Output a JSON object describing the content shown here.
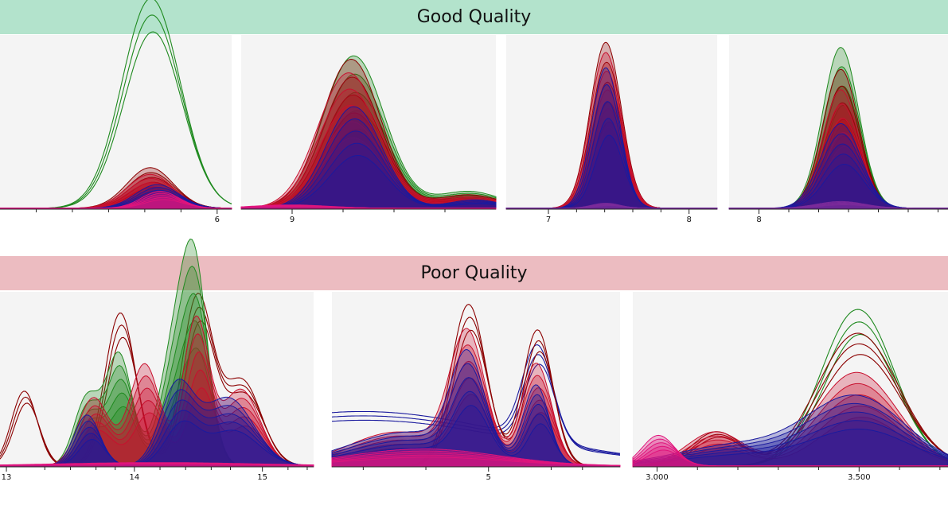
{
  "sections": [
    {
      "title": "Good Quality",
      "color": "#b3e3cc"
    },
    {
      "title": "Poor Quality",
      "color": "#ecbcc1"
    }
  ],
  "palette": {
    "green": "#1f8a1f",
    "red": "#c8102e",
    "dark_red": "#8b0000",
    "blue": "#1a1a9e",
    "magenta": "#e0147c",
    "purple": "#7a2a9a",
    "plot_background": "#f4f4f4"
  },
  "chart_data": [
    {
      "type": "line",
      "section": "Good Quality",
      "xlim": [
        4.5,
        6.1
      ],
      "ylim": [
        0,
        1
      ],
      "tick_values": [
        6
      ],
      "tick_labels": [
        "6"
      ],
      "minor_ticks": [
        4.75,
        5.0,
        5.25,
        5.5,
        5.75
      ],
      "series": [
        {
          "color": "green",
          "fill": false,
          "peaks": [
            [
              5.55,
              0.2,
              0.89
            ],
            [
              5.55,
              0.2,
              0.35
            ]
          ]
        },
        {
          "color": "dark_red",
          "fill": true,
          "peaks": [
            [
              5.55,
              0.16,
              0.24
            ]
          ]
        },
        {
          "color": "red",
          "fill": true,
          "peaks": [
            [
              5.55,
              0.16,
              0.2
            ]
          ]
        },
        {
          "color": "blue",
          "fill": true,
          "peaks": [
            [
              5.6,
              0.15,
              0.14
            ]
          ]
        },
        {
          "color": "magenta",
          "fill": true,
          "peaks": [
            [
              5.62,
              0.13,
              0.1
            ]
          ]
        }
      ]
    },
    {
      "type": "line",
      "section": "Good Quality",
      "xlim": [
        8.6,
        10.6
      ],
      "ylim": [
        0,
        1
      ],
      "tick_values": [
        9
      ],
      "tick_labels": [
        "9"
      ],
      "minor_ticks": [
        9.4,
        9.8,
        10.2
      ],
      "series": [
        {
          "color": "green",
          "fill": true,
          "peaks": [
            [
              9.5,
              0.24,
              0.9
            ],
            [
              10.4,
              0.25,
              0.1
            ]
          ]
        },
        {
          "color": "dark_red",
          "fill": true,
          "peaks": [
            [
              9.48,
              0.23,
              0.88
            ],
            [
              10.4,
              0.25,
              0.08
            ]
          ]
        },
        {
          "color": "red",
          "fill": true,
          "peaks": [
            [
              9.46,
              0.24,
              0.8
            ],
            [
              10.4,
              0.25,
              0.07
            ]
          ]
        },
        {
          "color": "blue",
          "fill": true,
          "peaks": [
            [
              9.5,
              0.22,
              0.6
            ],
            [
              10.45,
              0.2,
              0.05
            ]
          ]
        },
        {
          "color": "magenta",
          "fill": true,
          "peaks": [
            [
              9.0,
              0.3,
              0.02
            ]
          ]
        }
      ]
    },
    {
      "type": "line",
      "section": "Good Quality",
      "xlim": [
        6.7,
        8.2
      ],
      "ylim": [
        0,
        1
      ],
      "tick_values": [
        7,
        8
      ],
      "tick_labels": [
        "7",
        "8"
      ],
      "minor_ticks": [
        7.2,
        7.4,
        7.6,
        7.8
      ],
      "series": [
        {
          "color": "dark_red",
          "fill": true,
          "peaks": [
            [
              7.42,
              0.11,
              0.98
            ]
          ]
        },
        {
          "color": "red",
          "fill": true,
          "peaks": [
            [
              7.42,
              0.11,
              0.92
            ]
          ]
        },
        {
          "color": "blue",
          "fill": true,
          "peaks": [
            [
              7.42,
              0.1,
              0.83
            ]
          ]
        },
        {
          "color": "purple",
          "fill": true,
          "peaks": [
            [
              7.42,
              0.1,
              0.03
            ]
          ]
        }
      ]
    },
    {
      "type": "line",
      "section": "Good Quality",
      "xlim": [
        7.85,
        8.95
      ],
      "ylim": [
        0,
        1
      ],
      "tick_values": [
        8
      ],
      "tick_labels": [
        "8"
      ],
      "minor_ticks": [
        8.15,
        8.3,
        8.45,
        8.6,
        8.75,
        8.9
      ],
      "series": [
        {
          "color": "green",
          "fill": true,
          "peaks": [
            [
              8.42,
              0.09,
              0.95
            ]
          ]
        },
        {
          "color": "dark_red",
          "fill": true,
          "peaks": [
            [
              8.42,
              0.09,
              0.82
            ]
          ]
        },
        {
          "color": "red",
          "fill": true,
          "peaks": [
            [
              8.42,
              0.09,
              0.7
            ]
          ]
        },
        {
          "color": "blue",
          "fill": true,
          "peaks": [
            [
              8.42,
              0.1,
              0.5
            ]
          ]
        },
        {
          "color": "purple",
          "fill": true,
          "peaks": [
            [
              8.42,
              0.12,
              0.04
            ]
          ]
        }
      ]
    },
    {
      "type": "line",
      "section": "Poor Quality",
      "xlim": [
        12.95,
        15.4
      ],
      "ylim": [
        0,
        1
      ],
      "tick_values": [
        13,
        14,
        15
      ],
      "tick_labels": [
        "13",
        "14",
        "15"
      ],
      "minor_ticks": [
        13.3,
        13.5,
        13.7,
        13.85,
        14.2,
        14.4,
        14.6,
        14.75,
        15.2,
        15.35
      ],
      "series": [
        {
          "color": "dark_red",
          "fill": false,
          "peaks": [
            [
              13.15,
              0.1,
              0.44
            ],
            [
              13.9,
              0.12,
              0.9
            ],
            [
              14.5,
              0.12,
              0.98
            ],
            [
              14.85,
              0.15,
              0.5
            ]
          ]
        },
        {
          "color": "green",
          "fill": true,
          "peaks": [
            [
              13.9,
              0.1,
              0.65
            ],
            [
              14.35,
              0.13,
              0.72
            ],
            [
              14.5,
              0.1,
              0.9
            ],
            [
              13.65,
              0.1,
              0.4
            ]
          ]
        },
        {
          "color": "red",
          "fill": true,
          "peaks": [
            [
              14.1,
              0.12,
              0.6
            ],
            [
              14.5,
              0.1,
              0.85
            ],
            [
              14.85,
              0.15,
              0.45
            ],
            [
              13.7,
              0.12,
              0.4
            ]
          ]
        },
        {
          "color": "blue",
          "fill": true,
          "peaks": [
            [
              13.65,
              0.1,
              0.3
            ],
            [
              14.35,
              0.13,
              0.45
            ],
            [
              14.75,
              0.2,
              0.4
            ]
          ]
        },
        {
          "color": "magenta",
          "fill": true,
          "peaks": [
            [
              14.2,
              0.8,
              0.02
            ]
          ]
        }
      ]
    },
    {
      "type": "line",
      "section": "Poor Quality",
      "xlim": [
        3.75,
        6.05
      ],
      "ylim": [
        0,
        1
      ],
      "tick_values": [
        5
      ],
      "tick_labels": [
        "5"
      ],
      "minor_ticks": [
        4.0,
        4.5,
        5.5,
        5.75
      ],
      "series": [
        {
          "color": "blue",
          "fill": false,
          "peaks": [
            [
              4.0,
              1.2,
              0.32
            ],
            [
              5.4,
              0.12,
              0.55
            ]
          ]
        },
        {
          "color": "dark_red",
          "fill": false,
          "peaks": [
            [
              4.85,
              0.14,
              0.95
            ],
            [
              5.4,
              0.12,
              0.8
            ]
          ]
        },
        {
          "color": "red",
          "fill": true,
          "peaks": [
            [
              4.85,
              0.14,
              0.73
            ],
            [
              5.4,
              0.12,
              0.6
            ],
            [
              4.3,
              0.4,
              0.2
            ]
          ]
        },
        {
          "color": "blue",
          "fill": true,
          "peaks": [
            [
              4.85,
              0.13,
              0.55
            ],
            [
              5.4,
              0.1,
              0.45
            ],
            [
              4.4,
              0.5,
              0.2
            ]
          ]
        },
        {
          "color": "magenta",
          "fill": true,
          "peaks": [
            [
              4.5,
              0.6,
              0.1
            ]
          ]
        }
      ]
    },
    {
      "type": "line",
      "section": "Poor Quality",
      "xlim": [
        2.94,
        3.72
      ],
      "ylim": [
        0,
        1
      ],
      "tick_values": [
        3.0,
        3.5
      ],
      "tick_labels": [
        "3.000",
        "3.500"
      ],
      "minor_ticks": [
        3.1,
        3.2,
        3.3,
        3.4,
        3.6,
        3.7
      ],
      "series": [
        {
          "color": "green",
          "fill": false,
          "peaks": [
            [
              3.5,
              0.09,
              0.92
            ]
          ]
        },
        {
          "color": "dark_red",
          "fill": false,
          "peaks": [
            [
              3.5,
              0.1,
              0.78
            ],
            [
              3.15,
              0.06,
              0.2
            ]
          ]
        },
        {
          "color": "red",
          "fill": true,
          "peaks": [
            [
              3.5,
              0.1,
              0.55
            ],
            [
              3.15,
              0.07,
              0.2
            ]
          ]
        },
        {
          "color": "blue",
          "fill": true,
          "peaks": [
            [
              3.5,
              0.12,
              0.4
            ],
            [
              3.2,
              0.15,
              0.12
            ]
          ]
        },
        {
          "color": "magenta",
          "fill": true,
          "peaks": [
            [
              3.01,
              0.04,
              0.18
            ]
          ]
        }
      ]
    }
  ]
}
